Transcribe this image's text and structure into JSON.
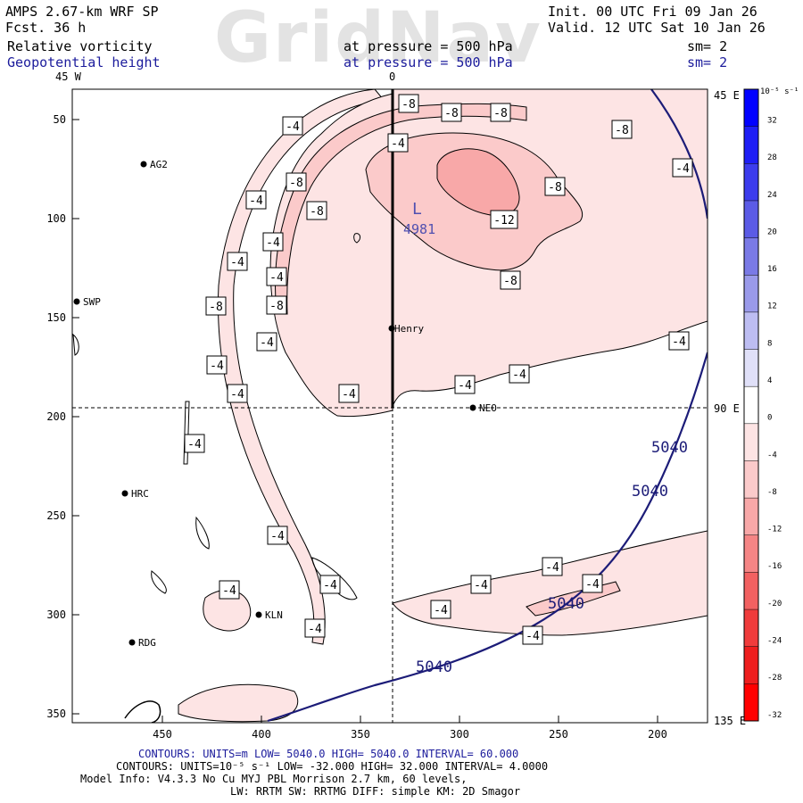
{
  "header": {
    "model": "AMPS 2.67-km WRF SP",
    "forecast": "Fcst.   36 h",
    "init": "Init. 00 UTC Fri 09 Jan 26",
    "valid": "Valid. 12 UTC Sat 10 Jan 26",
    "field1": {
      "name": "Relative vorticity",
      "level": "at pressure =  500 hPa",
      "smooth": "sm= 2"
    },
    "field2": {
      "name": "Geopotential height",
      "level": "at pressure =  500 hPa",
      "smooth": "sm= 2"
    },
    "watermark": "GridNav"
  },
  "map": {
    "lon_labels": [
      "45 W",
      "0",
      "45 E",
      "90 E",
      "135 E"
    ],
    "x_ticks": [
      "450",
      "400",
      "350",
      "300",
      "250",
      "200"
    ],
    "y_ticks": [
      "50",
      "100",
      "150",
      "200",
      "250",
      "300",
      "350"
    ],
    "stations": [
      {
        "name": "AG2"
      },
      {
        "name": "SWP"
      },
      {
        "name": "Henry"
      },
      {
        "name": "NEO"
      },
      {
        "name": "HRC"
      },
      {
        "name": "KLN"
      },
      {
        "name": "RDG"
      }
    ],
    "low": {
      "symbol": "L",
      "value": "4981"
    },
    "height_labels": [
      "5040",
      "5040",
      "5040",
      "5040"
    ],
    "vorticity_labels": [
      "-8",
      "-8",
      "-8",
      "-4",
      "-8",
      "-4",
      "-4",
      "-8",
      "-8",
      "-4",
      "-8",
      "-12",
      "-4",
      "-4",
      "-8",
      "-4",
      "-8",
      "-8",
      "-4",
      "-4",
      "-4",
      "-4",
      "-4",
      "-4",
      "-4",
      "-4",
      "-4",
      "-4",
      "-4",
      "-4",
      "-4",
      "-4",
      "-4",
      "-4",
      "-4"
    ]
  },
  "colorbar": {
    "units": "10⁻⁵ s⁻¹",
    "ticks": [
      "32",
      "28",
      "24",
      "20",
      "16",
      "12",
      "8",
      "4",
      "0",
      "-4",
      "-8",
      "-12",
      "-16",
      "-20",
      "-24",
      "-28",
      "-32"
    ],
    "colors": [
      "#0000ff",
      "#1e1ef5",
      "#3c3ced",
      "#5b5be6",
      "#7a7ae6",
      "#9a9aea",
      "#bdbdf2",
      "#e0e0f8",
      "#ffffff",
      "#fde4e4",
      "#fbcaca",
      "#f8a8a8",
      "#f58585",
      "#f26161",
      "#f03c3c",
      "#ee1e1e",
      "#ff0000"
    ]
  },
  "footer": {
    "line1": "CONTOURS:  UNITS=m  LOW=  5040.0       HIGH=  5040.0       INTERVAL=   60.000",
    "line2": "CONTOURS:  UNITS=10⁻⁵ s⁻¹  LOW= -32.000        HIGH=  32.000        INTERVAL=   4.0000",
    "line3": "Model Info: V4.3.3    No Cu    MYJ PBL   Morrison             2.7 km,  60 levels,",
    "line4": "LW: RRTM SW: RRTMG   DIFF: simple KM: 2D Smagor"
  }
}
